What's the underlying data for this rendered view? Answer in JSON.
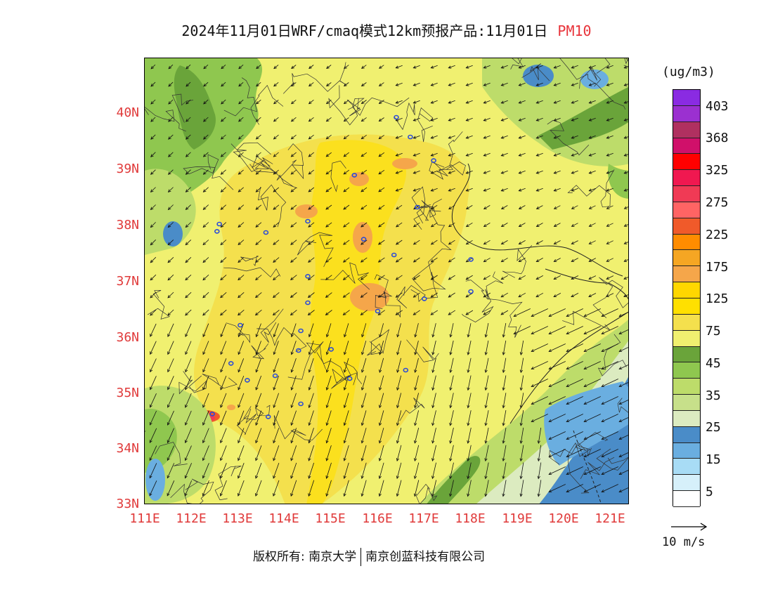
{
  "title": {
    "main": "2024年11月01日WRF/cmaq模式12km预报产品:11月01日",
    "pollutant": "PM10"
  },
  "axes": {
    "lat_labels": [
      "40N",
      "39N",
      "38N",
      "37N",
      "36N",
      "35N",
      "34N",
      "33N"
    ],
    "lon_labels": [
      "111E",
      "112E",
      "113E",
      "114E",
      "115E",
      "116E",
      "117E",
      "118E",
      "119E",
      "120E",
      "121E"
    ]
  },
  "colorbar": {
    "unit": "(ug/m3)",
    "colors": [
      "#8a2be2",
      "#9b30d0",
      "#b03060",
      "#d0106a",
      "#ff0000",
      "#f01850",
      "#f03a55",
      "#ff6464",
      "#f05a2a",
      "#ff8c00",
      "#f5a623",
      "#f5a64a",
      "#ffd700",
      "#ffe000",
      "#f4e04d",
      "#f0f070",
      "#6aa43a",
      "#8fc74f",
      "#bddc6a",
      "#c7e08a",
      "#dcebc0",
      "#4a8cc8",
      "#6aaee0",
      "#a8dcf5",
      "#d6f0fa",
      "#ffffff"
    ],
    "labels": [
      "403",
      "368",
      "325",
      "275",
      "225",
      "175",
      "125",
      "75",
      "45",
      "35",
      "25",
      "15",
      "5"
    ]
  },
  "wind_legend": {
    "label": "10 m/s"
  },
  "footer": {
    "left": "版权所有: 南京大学",
    "right": "南京创蓝科技有限公司"
  },
  "cities": [
    {
      "lon": 116.4,
      "lat": 39.9
    },
    {
      "lon": 116.7,
      "lat": 39.55
    },
    {
      "lon": 117.2,
      "lat": 39.13
    },
    {
      "lon": 115.5,
      "lat": 38.87
    },
    {
      "lon": 116.85,
      "lat": 38.3
    },
    {
      "lon": 114.5,
      "lat": 38.05
    },
    {
      "lon": 112.55,
      "lat": 37.87
    },
    {
      "lon": 113.6,
      "lat": 37.85
    },
    {
      "lon": 115.7,
      "lat": 37.73
    },
    {
      "lon": 116.35,
      "lat": 37.45
    },
    {
      "lon": 118.0,
      "lat": 37.37
    },
    {
      "lon": 114.5,
      "lat": 37.07
    },
    {
      "lon": 117.0,
      "lat": 36.67
    },
    {
      "lon": 118.0,
      "lat": 36.8
    },
    {
      "lon": 114.5,
      "lat": 36.6
    },
    {
      "lon": 116.0,
      "lat": 36.45
    },
    {
      "lon": 113.05,
      "lat": 36.2
    },
    {
      "lon": 114.35,
      "lat": 36.1
    },
    {
      "lon": 114.3,
      "lat": 35.75
    },
    {
      "lon": 115.0,
      "lat": 35.77
    },
    {
      "lon": 113.8,
      "lat": 35.3
    },
    {
      "lon": 112.85,
      "lat": 35.52
    },
    {
      "lon": 113.2,
      "lat": 35.22
    },
    {
      "lon": 115.4,
      "lat": 35.25
    },
    {
      "lon": 116.6,
      "lat": 35.4
    },
    {
      "lon": 114.35,
      "lat": 34.8
    },
    {
      "lon": 113.65,
      "lat": 34.57
    },
    {
      "lon": 112.45,
      "lat": 34.62
    },
    {
      "lon": 112.6,
      "lat": 38.0
    }
  ]
}
